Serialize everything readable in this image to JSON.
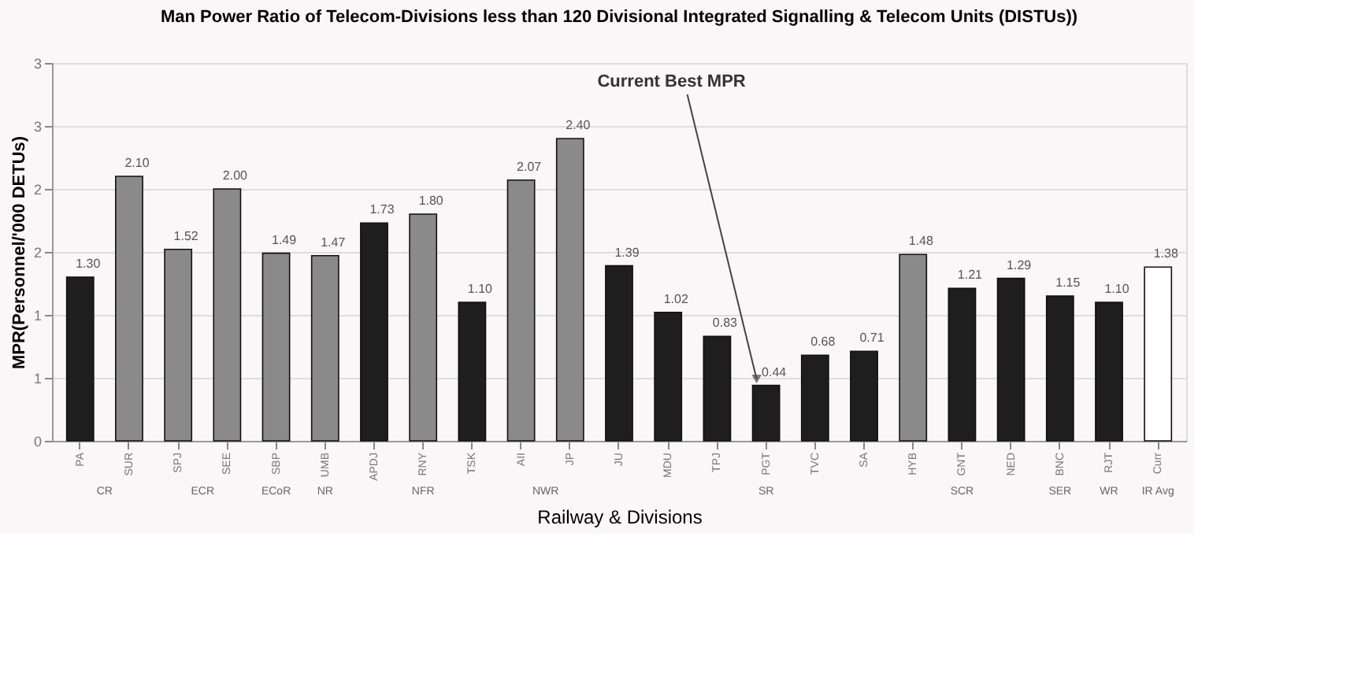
{
  "chart_data": {
    "type": "bar",
    "title": "Man Power Ratio of Telecom-Divisions less than 120 Divisional Integrated Signalling & Telecom Units (DISTUs))",
    "xlabel": "Railway & Divisions",
    "ylabel": "MPR(Personnel/'000 DETUs)",
    "categories": [
      "PA",
      "SUR",
      "SPJ",
      "SEE",
      "SBP",
      "UMB",
      "APDJ",
      "RNY",
      "TSK",
      "AII",
      "JP",
      "JU",
      "MDU",
      "TPJ",
      "PGT",
      "TVC",
      "SA",
      "HYB",
      "GNT",
      "NED",
      "BNC",
      "RJT",
      "Curr"
    ],
    "values": [
      1.3,
      2.1,
      1.52,
      2.0,
      1.49,
      1.47,
      1.73,
      1.8,
      1.1,
      2.07,
      2.4,
      1.39,
      1.02,
      0.83,
      0.44,
      0.68,
      0.71,
      1.48,
      1.21,
      1.29,
      1.15,
      1.1,
      1.38
    ],
    "colors": [
      "#1e1e1e",
      "#8a8a8a",
      "#8a8a8a",
      "#8a8a8a",
      "#8a8a8a",
      "#8a8a8a",
      "#1e1e1e",
      "#8a8a8a",
      "#1e1e1e",
      "#8a8a8a",
      "#8a8a8a",
      "#1e1e1e",
      "#1e1e1e",
      "#1e1e1e",
      "#1e1e1e",
      "#1e1e1e",
      "#1e1e1e",
      "#8a8a8a",
      "#1e1e1e",
      "#1e1e1e",
      "#1e1e1e",
      "#1e1e1e",
      "#ffffff"
    ],
    "ylim": [
      0,
      3
    ],
    "yticks": [
      0,
      {
        "value": 0.5,
        "label": "1"
      },
      1,
      {
        "value": 1.5,
        "label": "2"
      },
      2,
      {
        "value": 2.5,
        "label": "3"
      },
      3
    ],
    "grid": "y",
    "value_labels": [
      "1.30",
      "2.10",
      "1.52",
      "2.00",
      "1.49",
      "1.47",
      "1.73",
      "1.80",
      "1.10",
      "2.07",
      "2.40",
      "1.39",
      "1.02",
      "0.83",
      "0.44",
      "0.68",
      "0.71",
      "1.48",
      "1.21",
      "1.29",
      "1.15",
      "1.10",
      "1.38"
    ],
    "annotations": [
      {
        "text": "Current Best MPR",
        "x": "PGT",
        "y": 0.44
      },
      "CR",
      "ECR",
      "ECoR",
      "NR",
      "NFR",
      "NWR",
      "SR",
      "SCR",
      "SER",
      "WR",
      "IR Avg"
    ]
  }
}
